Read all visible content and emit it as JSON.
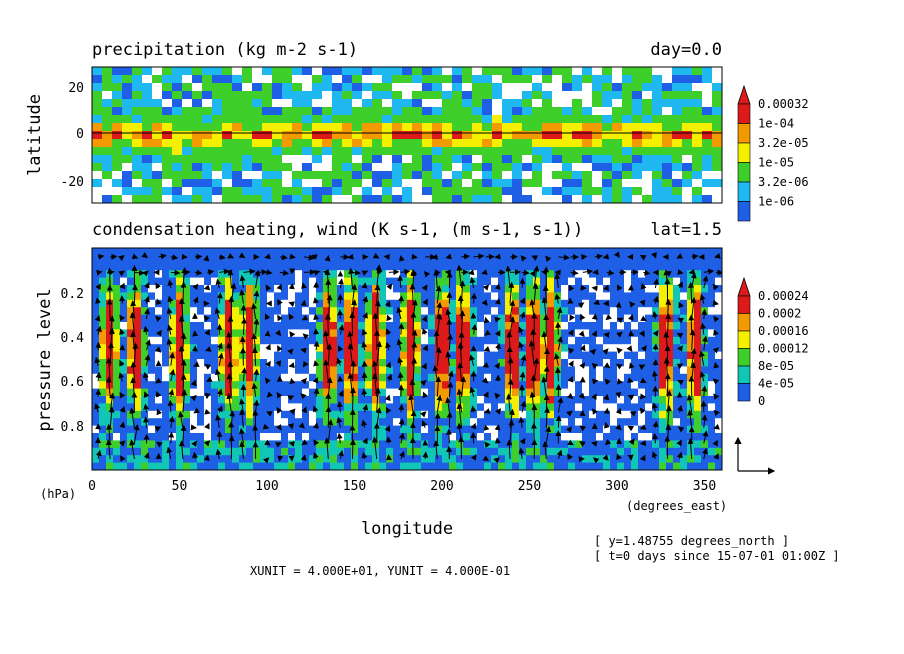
{
  "chart_data": [
    {
      "type": "heatmap",
      "title": "precipitation (kg m-2 s-1)",
      "subtitle": "day=0.0",
      "xlabel": "",
      "ylabel": "latitude",
      "xlim": [
        0,
        360
      ],
      "ylim": [
        -28,
        28
      ],
      "y_ticks": [
        "20",
        "0",
        "-20"
      ],
      "colorbar": {
        "levels": [
          "0.00032",
          "1e-04",
          "3.2e-05",
          "1e-05",
          "3.2e-06",
          "1e-06"
        ],
        "colors": [
          "#dd1a1a",
          "#f39a00",
          "#f5f000",
          "#3fcf2a",
          "#1fb8f0",
          "#1f5fe6"
        ]
      },
      "reference_line_y": 0
    },
    {
      "type": "heatmap",
      "title": "condensation heating, wind (K s-1, (m s-1, s-1))",
      "subtitle": "lat=1.5",
      "xlabel": "longitude",
      "ylabel": "pressure level",
      "y_unit": "(hPa)",
      "x_unit": "(degrees_east)",
      "xlim": [
        0,
        360
      ],
      "ylim": [
        1.0,
        0.0
      ],
      "x_ticks": [
        "0",
        "50",
        "100",
        "150",
        "200",
        "250",
        "300",
        "350"
      ],
      "y_ticks": [
        "0.2",
        "0.4",
        "0.6",
        "0.8"
      ],
      "colorbar": {
        "levels": [
          "0.00024",
          "0.0002",
          "0.00016",
          "0.00012",
          "8e-05",
          "4e-05",
          "0"
        ],
        "colors": [
          "#dd1a1a",
          "#f39a00",
          "#f5f000",
          "#3fcf2a",
          "#12c6b6",
          "#1f5fe6"
        ]
      },
      "strong_columns_lon": [
        10,
        25,
        50,
        78,
        90,
        135,
        148,
        162,
        182,
        200,
        212,
        240,
        252,
        262,
        328,
        345
      ]
    }
  ],
  "notes": {
    "y_value": "[ y=1.48755 degrees_north ]",
    "t_value": "[ t=0 days since 15-07-01 01:00Z ]",
    "units": "XUNIT = 4.000E+01, YUNIT = 4.000E-01"
  }
}
